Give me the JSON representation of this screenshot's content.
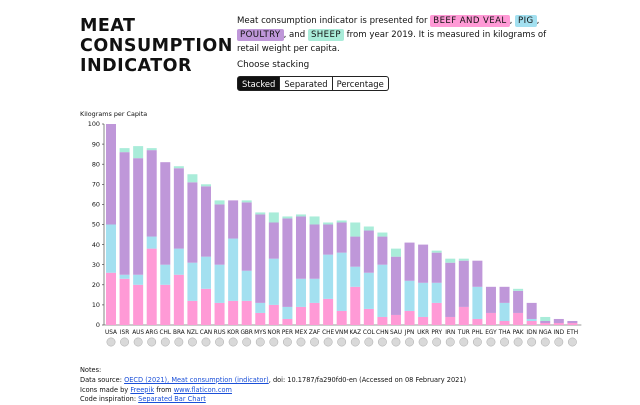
{
  "title": [
    "MEAT",
    "CONSUMPTION",
    "INDICATOR"
  ],
  "intro": {
    "part1": "Meat consumption indicator is presented for ",
    "part2": ", ",
    "part3": ", ",
    "part4": ", and ",
    "part5": " from year 2019. It is measured in kilograms of retail weight per capita."
  },
  "stacking": {
    "label": "Choose stacking",
    "options": [
      "Stacked",
      "Separated",
      "Percentage"
    ],
    "selected": "Stacked"
  },
  "notes": {
    "heading": "Notes:",
    "source_prefix": "Data source: ",
    "source_link": "OECD (2021), Meat consumption (indicator)",
    "source_suffix": ", doi: 10.1787/fa290fd0-en (Accessed on 08 February 2021)",
    "icons_prefix": "Icons made by ",
    "icons_author": "Freepik",
    "icons_mid": " from ",
    "icons_site": "www.flaticon.com",
    "code_prefix": "Code inspiration: ",
    "code_link": "Separated Bar Chart"
  },
  "colors": {
    "beef": "#ff9ad6",
    "pig": "#a3e0f0",
    "poultry": "#bf97d9",
    "sheep": "#a9ecd9"
  },
  "chart_data": {
    "type": "bar",
    "stacking": "stacked",
    "ylabel": "Kilograms per Capita",
    "ylim": [
      0,
      100
    ],
    "yticks": [
      0,
      10,
      20,
      30,
      40,
      50,
      60,
      70,
      80,
      90,
      100
    ],
    "categories": [
      "USA",
      "ISR",
      "AUS",
      "ARG",
      "CHL",
      "BRA",
      "NZL",
      "CAN",
      "RUS",
      "KOR",
      "GBR",
      "MYS",
      "NOR",
      "PER",
      "MEX",
      "ZAF",
      "CHE",
      "VNM",
      "KAZ",
      "COL",
      "CHN",
      "SAU",
      "JPN",
      "UKR",
      "PRY",
      "IRN",
      "TUR",
      "PHL",
      "EGY",
      "THA",
      "PAK",
      "IDN",
      "NGA",
      "IND",
      "ETH"
    ],
    "series": [
      {
        "name": "BEEF AND VEAL",
        "key": "beef",
        "values": [
          26,
          23,
          20,
          38,
          20,
          25,
          12,
          18,
          11,
          12,
          12,
          6,
          10,
          3,
          9,
          11,
          13,
          7,
          19,
          8,
          4,
          5,
          7,
          4,
          11,
          4,
          9,
          3,
          6,
          2,
          6,
          2,
          1,
          1,
          1
        ]
      },
      {
        "name": "PIG",
        "key": "pig",
        "values": [
          24,
          2,
          5,
          6,
          10,
          13,
          19,
          16,
          19,
          31,
          15,
          5,
          23,
          6,
          14,
          12,
          22,
          29,
          10,
          18,
          26,
          0,
          15,
          17,
          10,
          0,
          0,
          16,
          0,
          9,
          0,
          1,
          0,
          0,
          0
        ]
      },
      {
        "name": "POULTRY",
        "key": "poultry",
        "values": [
          50,
          61,
          58,
          43,
          51,
          40,
          40,
          35,
          30,
          19,
          34,
          44,
          18,
          44,
          31,
          27,
          15,
          15,
          15,
          21,
          14,
          29,
          19,
          19,
          15,
          27,
          23,
          13,
          13,
          8,
          11,
          8,
          1,
          2,
          1
        ]
      },
      {
        "name": "SHEEP",
        "key": "sheep",
        "values": [
          0,
          2,
          6,
          1,
          0,
          1,
          4,
          1,
          2,
          0,
          1,
          1,
          5,
          1,
          1,
          4,
          1,
          1,
          7,
          2,
          2,
          4,
          0,
          0,
          1,
          2,
          1,
          0,
          0,
          0,
          1,
          0,
          2,
          0,
          0
        ]
      }
    ]
  }
}
